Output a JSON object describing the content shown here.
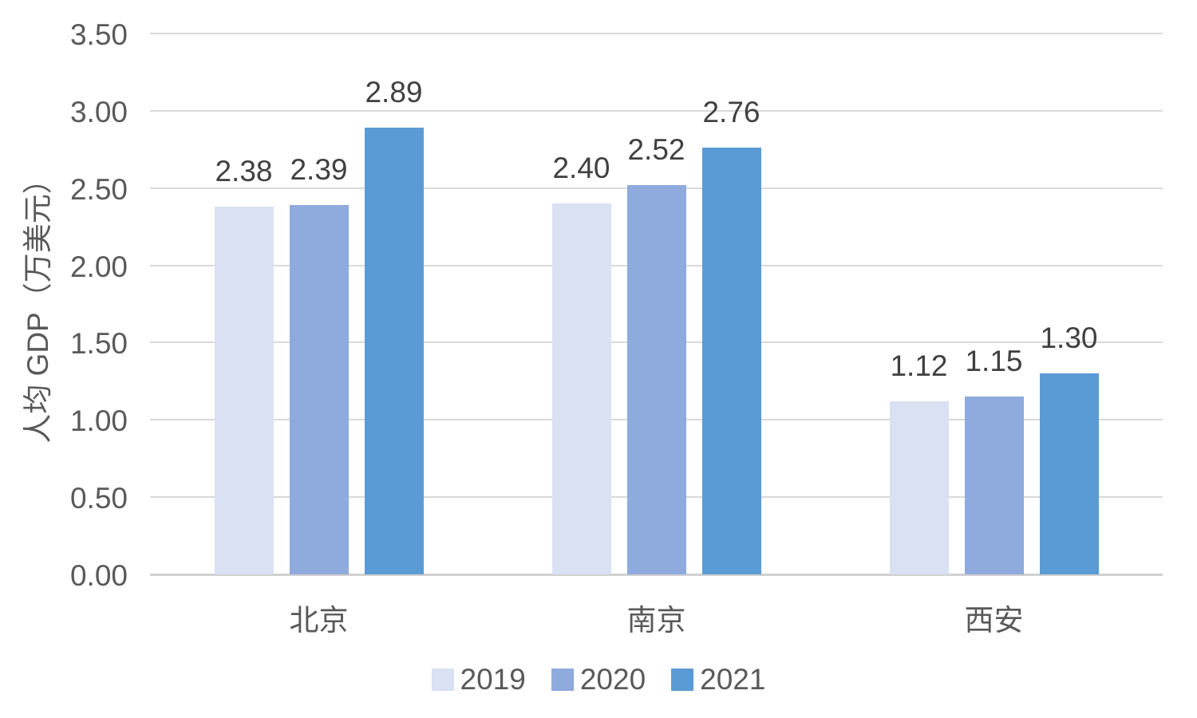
{
  "chart_data": {
    "type": "bar",
    "title": "",
    "categories": [
      "北京",
      "南京",
      "西安"
    ],
    "categories_slug": [
      "beijing",
      "nanjing",
      "xian"
    ],
    "series": [
      {
        "name": "2019",
        "color": "#D9E1F2",
        "values": [
          2.38,
          2.4,
          1.12
        ],
        "labels": [
          "2.38",
          "2.40",
          "1.12"
        ]
      },
      {
        "name": "2020",
        "color": "#8FAADC",
        "values": [
          2.39,
          2.52,
          1.15
        ],
        "labels": [
          "2.39",
          "2.52",
          "1.15"
        ]
      },
      {
        "name": "2021",
        "color": "#5B9BD5",
        "values": [
          2.89,
          2.76,
          1.3
        ],
        "labels": [
          "2.89",
          "2.76",
          "1.30"
        ]
      }
    ],
    "xlabel": "",
    "ylabel": "人均 GDP（万美元）",
    "ylim": [
      0,
      3.5
    ],
    "y_ticks": [
      "0.00",
      "0.50",
      "1.00",
      "1.50",
      "2.00",
      "2.50",
      "3.00",
      "3.50"
    ],
    "grid": true,
    "legend_position": "bottom",
    "text_color": "#595959",
    "data_label_color": "#404040",
    "gridline_color": "#D9D9D9"
  }
}
